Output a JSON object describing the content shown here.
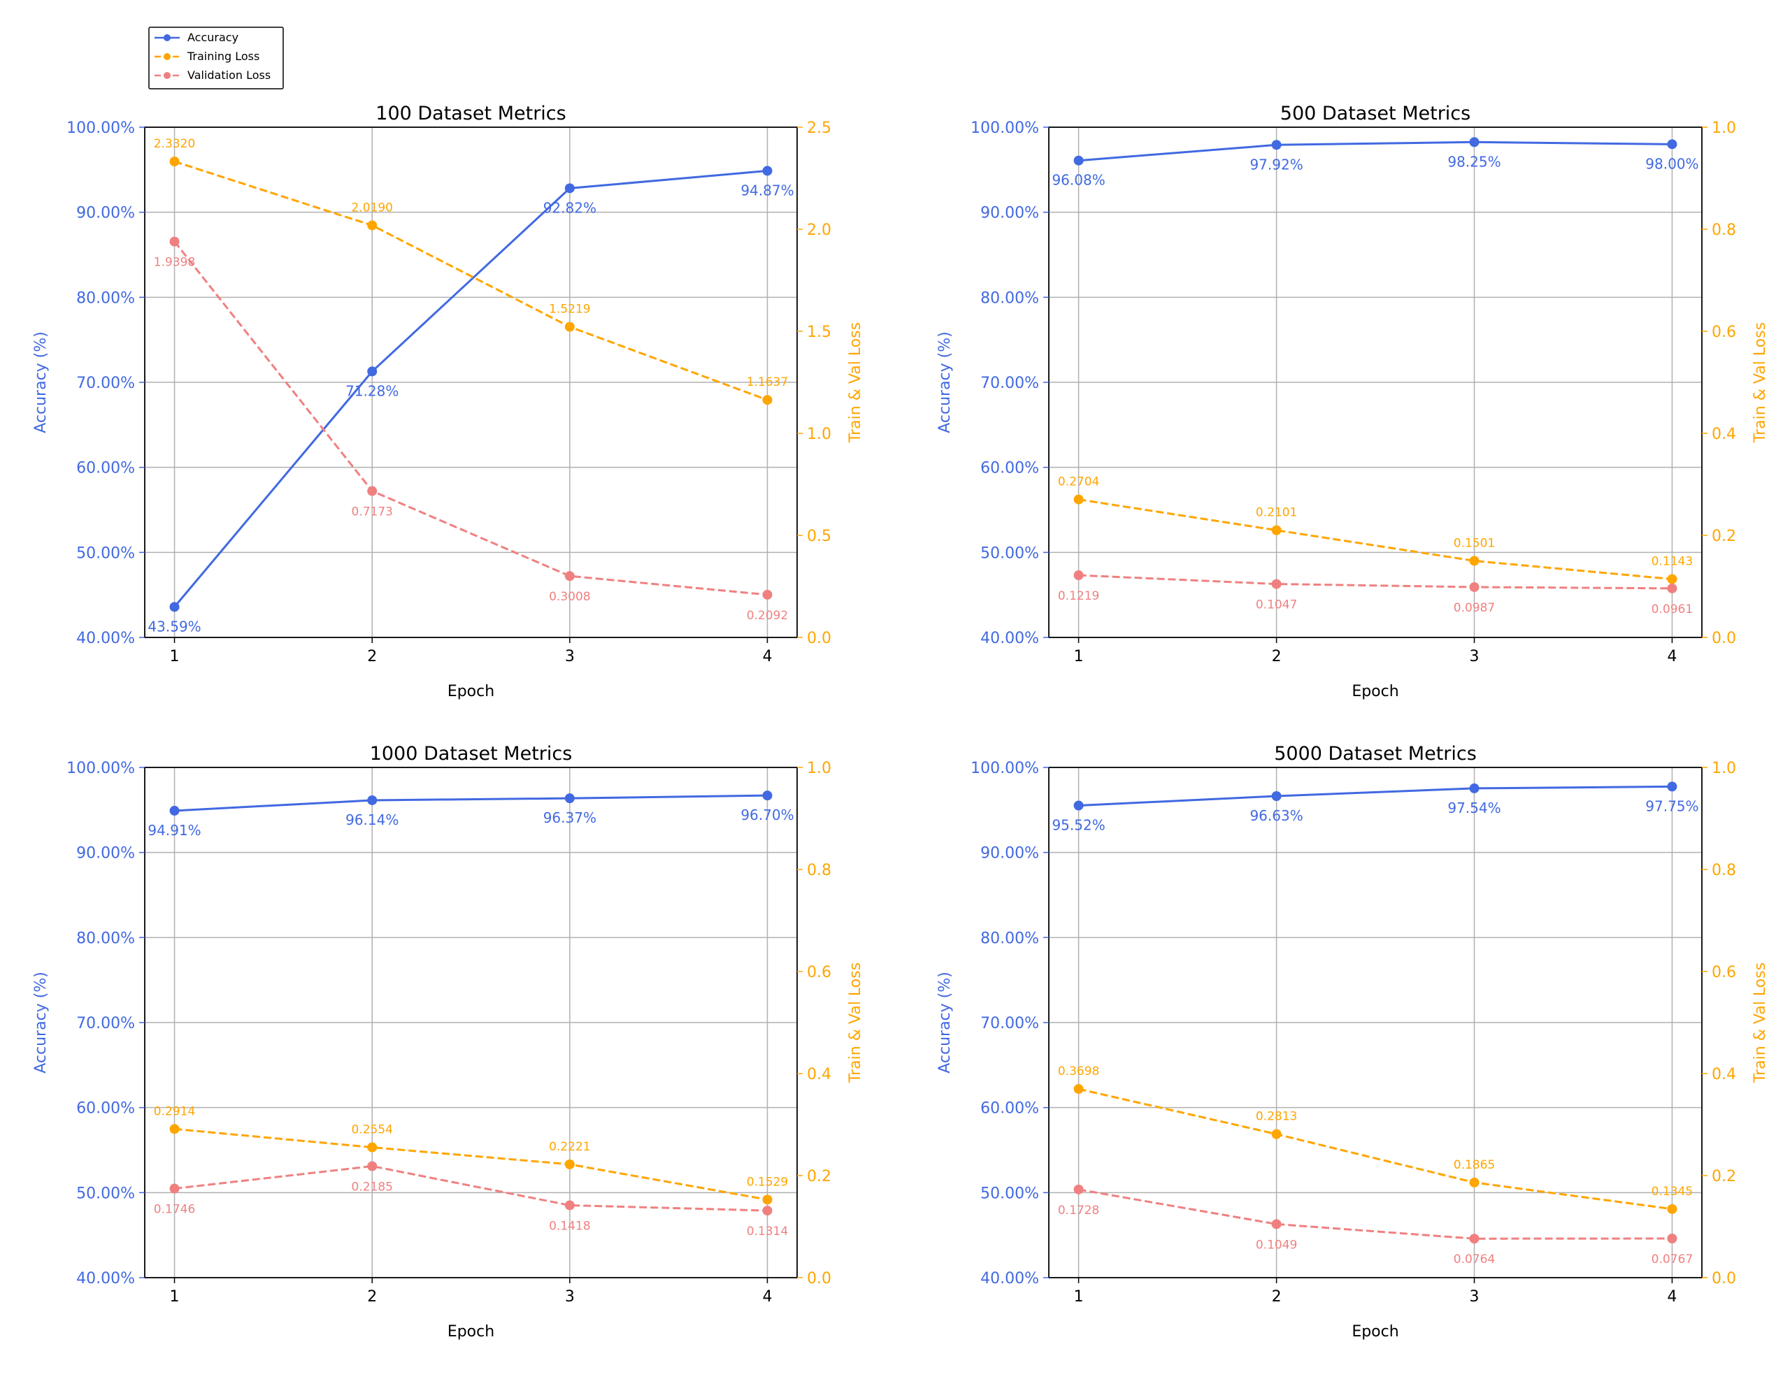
{
  "legend": {
    "entries": [
      "Accuracy",
      "Training Loss",
      "Validation Loss"
    ]
  },
  "colors": {
    "accuracy": "#4169e1",
    "training_loss": "#ffa500",
    "validation_loss": "#f08080",
    "grid": "#b0b0b0",
    "axis": "#000000"
  },
  "chart_data": [
    {
      "type": "line",
      "title": "100 Dataset Metrics",
      "xlabel": "Epoch",
      "ylabel": "Accuracy (%)",
      "y2label": "Train & Val Loss",
      "x": [
        1,
        2,
        3,
        4
      ],
      "ylim": [
        40,
        100
      ],
      "y2lim": [
        0,
        2.5
      ],
      "yticks": [
        "40.00%",
        "50.00%",
        "60.00%",
        "70.00%",
        "80.00%",
        "90.00%",
        "100.00%"
      ],
      "y2ticks": [
        "0.0",
        "0.5",
        "1.0",
        "1.5",
        "2.0",
        "2.5"
      ],
      "grid": true,
      "series": [
        {
          "name": "Accuracy",
          "axis": "left",
          "values": [
            43.59,
            71.28,
            92.82,
            94.87
          ],
          "labels": [
            "43.59%",
            "71.28%",
            "92.82%",
            "94.87%"
          ]
        },
        {
          "name": "Training Loss",
          "axis": "right",
          "values": [
            2.332,
            2.019,
            1.5219,
            1.1637
          ],
          "labels": [
            "2.3320",
            "2.0190",
            "1.5219",
            "1.1637"
          ]
        },
        {
          "name": "Validation Loss",
          "axis": "right",
          "values": [
            1.9398,
            0.7173,
            0.3008,
            0.2092
          ],
          "labels": [
            "1.9398",
            "0.7173",
            "0.3008",
            "0.2092"
          ]
        }
      ]
    },
    {
      "type": "line",
      "title": "500 Dataset Metrics",
      "xlabel": "Epoch",
      "ylabel": "Accuracy (%)",
      "y2label": "Train & Val Loss",
      "x": [
        1,
        2,
        3,
        4
      ],
      "ylim": [
        40,
        100
      ],
      "y2lim": [
        0,
        1.0
      ],
      "yticks": [
        "40.00%",
        "50.00%",
        "60.00%",
        "70.00%",
        "80.00%",
        "90.00%",
        "100.00%"
      ],
      "y2ticks": [
        "0.0",
        "0.2",
        "0.4",
        "0.6",
        "0.8",
        "1.0"
      ],
      "grid": true,
      "series": [
        {
          "name": "Accuracy",
          "axis": "left",
          "values": [
            96.08,
            97.92,
            98.25,
            98.0
          ],
          "labels": [
            "96.08%",
            "97.92%",
            "98.25%",
            "98.00%"
          ]
        },
        {
          "name": "Training Loss",
          "axis": "right",
          "values": [
            0.2704,
            0.2101,
            0.1501,
            0.1143
          ],
          "labels": [
            "0.2704",
            "0.2101",
            "0.1501",
            "0.1143"
          ]
        },
        {
          "name": "Validation Loss",
          "axis": "right",
          "values": [
            0.1219,
            0.1047,
            0.0987,
            0.0961
          ],
          "labels": [
            "0.1219",
            "0.1047",
            "0.0987",
            "0.0961"
          ]
        }
      ]
    },
    {
      "type": "line",
      "title": "1000 Dataset Metrics",
      "xlabel": "Epoch",
      "ylabel": "Accuracy (%)",
      "y2label": "Train & Val Loss",
      "x": [
        1,
        2,
        3,
        4
      ],
      "ylim": [
        40,
        100
      ],
      "y2lim": [
        0,
        1.0
      ],
      "yticks": [
        "40.00%",
        "50.00%",
        "60.00%",
        "70.00%",
        "80.00%",
        "90.00%",
        "100.00%"
      ],
      "y2ticks": [
        "0.0",
        "0.2",
        "0.4",
        "0.6",
        "0.8",
        "1.0"
      ],
      "grid": true,
      "series": [
        {
          "name": "Accuracy",
          "axis": "left",
          "values": [
            94.91,
            96.14,
            96.37,
            96.7
          ],
          "labels": [
            "94.91%",
            "96.14%",
            "96.37%",
            "96.70%"
          ]
        },
        {
          "name": "Training Loss",
          "axis": "right",
          "values": [
            0.2914,
            0.2554,
            0.2221,
            0.1529
          ],
          "labels": [
            "0.2914",
            "0.2554",
            "0.2221",
            "0.1529"
          ]
        },
        {
          "name": "Validation Loss",
          "axis": "right",
          "values": [
            0.1746,
            0.2185,
            0.1418,
            0.1314
          ],
          "labels": [
            "0.1746",
            "0.2185",
            "0.1418",
            "0.1314"
          ]
        }
      ]
    },
    {
      "type": "line",
      "title": "5000 Dataset Metrics",
      "xlabel": "Epoch",
      "ylabel": "Accuracy (%)",
      "y2label": "Train & Val Loss",
      "x": [
        1,
        2,
        3,
        4
      ],
      "ylim": [
        40,
        100
      ],
      "y2lim": [
        0,
        1.0
      ],
      "yticks": [
        "40.00%",
        "50.00%",
        "60.00%",
        "70.00%",
        "80.00%",
        "90.00%",
        "100.00%"
      ],
      "y2ticks": [
        "0.0",
        "0.2",
        "0.4",
        "0.6",
        "0.8",
        "1.0"
      ],
      "grid": true,
      "series": [
        {
          "name": "Accuracy",
          "axis": "left",
          "values": [
            95.52,
            96.63,
            97.54,
            97.75
          ],
          "labels": [
            "95.52%",
            "96.63%",
            "97.54%",
            "97.75%"
          ]
        },
        {
          "name": "Training Loss",
          "axis": "right",
          "values": [
            0.3698,
            0.2813,
            0.1865,
            0.1345
          ],
          "labels": [
            "0.3698",
            "0.2813",
            "0.1865",
            "0.1345"
          ]
        },
        {
          "name": "Validation Loss",
          "axis": "right",
          "values": [
            0.1728,
            0.1049,
            0.0764,
            0.0767
          ],
          "labels": [
            "0.1728",
            "0.1049",
            "0.0764",
            "0.0767"
          ]
        }
      ]
    }
  ]
}
